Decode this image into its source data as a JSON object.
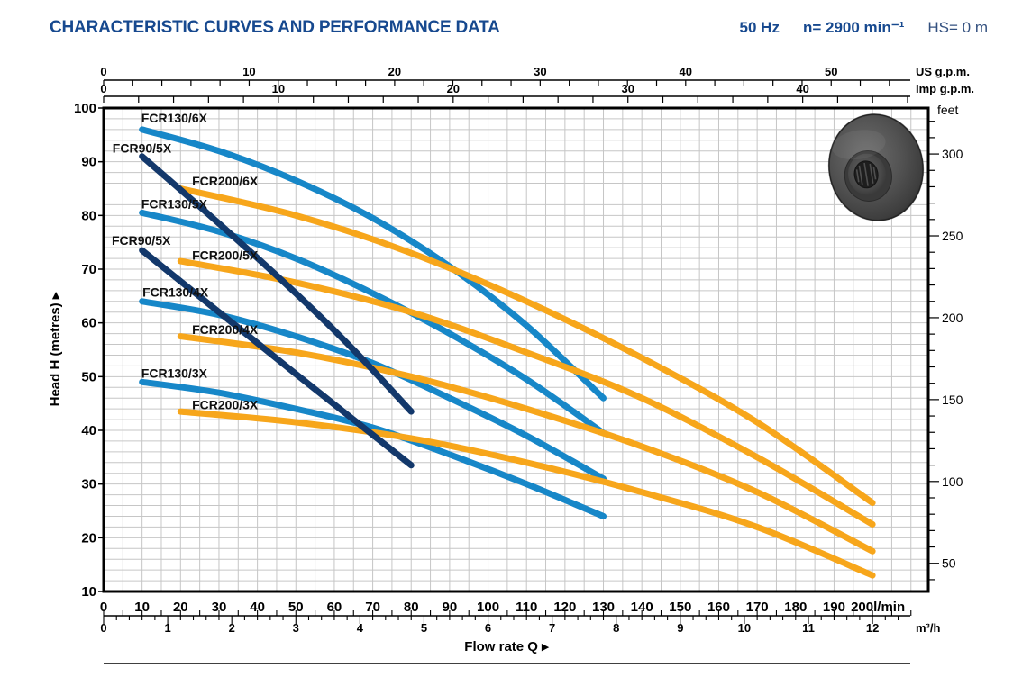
{
  "header": {
    "title": "CHARACTERISTIC CURVES AND PERFORMANCE DATA",
    "frequency": "50 Hz",
    "speed": "n= 2900 min⁻¹",
    "suction_head": "HS= 0 m"
  },
  "colors": {
    "title_blue": "#17498f",
    "fcr130": "#1787c8",
    "fcr90": "#13386b",
    "fcr200": "#f7a61b",
    "grid": "#c6c6c6",
    "frame": "#000000",
    "label_text": "#111111"
  },
  "chart_data": {
    "type": "line",
    "title": "CHARACTERISTIC CURVES AND PERFORMANCE DATA",
    "xlabel": "Flow rate Q",
    "ylabel": "Head H (metres)",
    "arrow_glyph": "▸",
    "xlim_lmin": [
      0,
      200
    ],
    "ylim_m": [
      10,
      100
    ],
    "grid": "on",
    "axes": {
      "head_m": {
        "unit": "metres",
        "major_ticks": [
          10,
          20,
          30,
          40,
          50,
          60,
          70,
          80,
          90,
          100
        ],
        "minor_step": 2
      },
      "feet": {
        "unit": "feet",
        "major_ticks": [
          50,
          100,
          150,
          200,
          250,
          300
        ],
        "minor_step": 10,
        "m_per_foot": 0.3048
      },
      "lmin": {
        "unit": "l/min",
        "major_ticks": [
          0,
          10,
          20,
          30,
          40,
          50,
          60,
          70,
          80,
          90,
          100,
          110,
          120,
          130,
          140,
          150,
          160,
          170,
          180,
          190,
          200
        ],
        "minor_step": 5,
        "last_label": "200l/min"
      },
      "m3h": {
        "unit": "m³/h",
        "major_ticks": [
          0,
          1,
          2,
          3,
          4,
          5,
          6,
          7,
          8,
          9,
          10,
          11,
          12
        ],
        "minor_step": 0.2,
        "lmin_per_unit": 16.6667
      },
      "us_gpm": {
        "unit": "US g.p.m.",
        "major_ticks": [
          0,
          10,
          20,
          30,
          40,
          50
        ],
        "minor_step": 2,
        "lmin_per_unit": 3.785
      },
      "imp_gpm": {
        "unit": "Imp g.p.m.",
        "major_ticks": [
          0,
          10,
          20,
          30,
          40
        ],
        "minor_step": 2,
        "lmin_per_unit": 4.546
      }
    },
    "series": [
      {
        "name": "FCR130/6X",
        "family": "fcr130",
        "label_at": [
          9.8,
          97.3
        ],
        "points": [
          [
            10,
            96
          ],
          [
            30,
            92
          ],
          [
            50,
            86.5
          ],
          [
            70,
            79.5
          ],
          [
            90,
            70.5
          ],
          [
            110,
            59.5
          ],
          [
            130,
            46
          ]
        ]
      },
      {
        "name": "FCR130/5X",
        "family": "fcr130",
        "label_at": [
          9.8,
          81.3
        ],
        "points": [
          [
            10,
            80.5
          ],
          [
            30,
            77
          ],
          [
            50,
            72
          ],
          [
            70,
            65.5
          ],
          [
            90,
            58
          ],
          [
            110,
            49.5
          ],
          [
            130,
            39.5
          ]
        ]
      },
      {
        "name": "FCR130/4X",
        "family": "fcr130",
        "label_at": [
          10.1,
          64.9
        ],
        "points": [
          [
            10,
            64
          ],
          [
            30,
            61.5
          ],
          [
            50,
            57.5
          ],
          [
            70,
            52.5
          ],
          [
            90,
            46
          ],
          [
            110,
            39
          ],
          [
            130,
            31
          ]
        ]
      },
      {
        "name": "FCR130/3X",
        "family": "fcr130",
        "label_at": [
          9.8,
          49.8
        ],
        "points": [
          [
            10,
            49
          ],
          [
            30,
            47
          ],
          [
            50,
            44
          ],
          [
            70,
            40.5
          ],
          [
            90,
            35.5
          ],
          [
            110,
            30
          ],
          [
            130,
            24
          ]
        ]
      },
      {
        "name": "FCR200/6X",
        "family": "fcr200",
        "label_at": [
          23,
          85.6
        ],
        "points": [
          [
            20,
            85
          ],
          [
            50,
            80
          ],
          [
            80,
            73
          ],
          [
            110,
            64
          ],
          [
            140,
            53.5
          ],
          [
            170,
            41.5
          ],
          [
            200,
            26.5
          ]
        ]
      },
      {
        "name": "FCR200/5X",
        "family": "fcr200",
        "label_at": [
          23,
          71.8
        ],
        "points": [
          [
            20,
            71.5
          ],
          [
            50,
            67.5
          ],
          [
            80,
            62
          ],
          [
            110,
            54.5
          ],
          [
            140,
            46
          ],
          [
            170,
            35
          ],
          [
            200,
            22.5
          ]
        ]
      },
      {
        "name": "FCR200/4X",
        "family": "fcr200",
        "label_at": [
          23,
          57.9
        ],
        "points": [
          [
            20,
            57.5
          ],
          [
            50,
            54.5
          ],
          [
            80,
            50
          ],
          [
            110,
            44
          ],
          [
            140,
            37
          ],
          [
            170,
            28.5
          ],
          [
            200,
            17.5
          ]
        ]
      },
      {
        "name": "FCR200/3X",
        "family": "fcr200",
        "label_at": [
          23,
          43.9
        ],
        "points": [
          [
            20,
            43.5
          ],
          [
            50,
            41.5
          ],
          [
            80,
            38.5
          ],
          [
            110,
            34
          ],
          [
            140,
            28.5
          ],
          [
            170,
            22
          ],
          [
            200,
            13
          ]
        ]
      },
      {
        "name": "FCR90/5X",
        "family": "fcr90",
        "label_at": [
          2.3,
          91.7
        ],
        "points": [
          [
            10,
            91
          ],
          [
            30,
            78.5
          ],
          [
            50,
            65.5
          ],
          [
            65,
            55
          ],
          [
            80,
            43.5
          ]
        ]
      },
      {
        "name": "FCR90/5X",
        "family": "fcr90",
        "label_at": [
          2.1,
          74.5
        ],
        "points": [
          [
            10,
            73.5
          ],
          [
            30,
            62
          ],
          [
            50,
            50.5
          ],
          [
            65,
            42
          ],
          [
            80,
            33.5
          ]
        ]
      }
    ]
  },
  "figure": {
    "name": "pump impeller photo"
  }
}
